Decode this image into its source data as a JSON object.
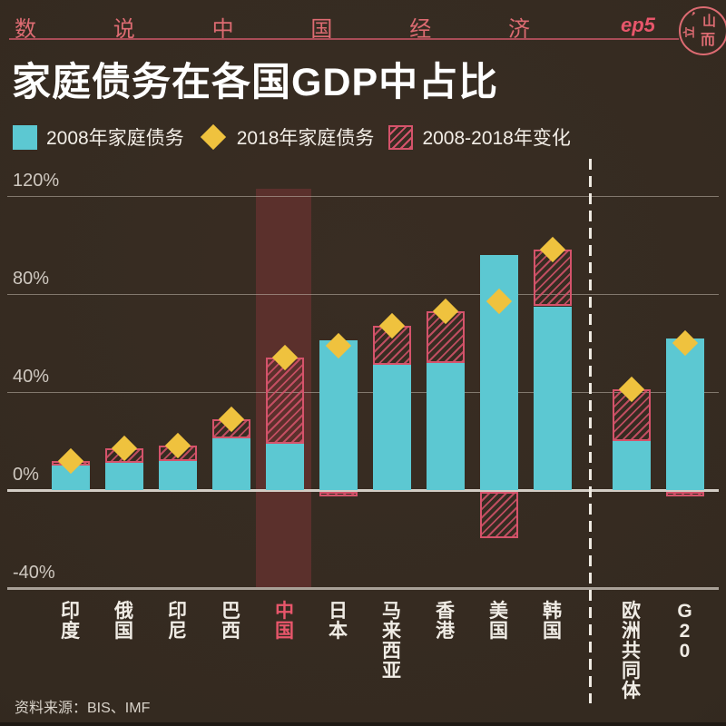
{
  "header": {
    "series_chars": [
      "数",
      "说",
      "中",
      "国",
      "经",
      "济"
    ],
    "episode": "ep5",
    "logo_top": "山",
    "logo_bottom": "而",
    "logo_left": "立",
    "logo_leaf": "❜"
  },
  "title": "家庭债务在各国GDP中占比",
  "legend": [
    {
      "swatch": "cyan-square",
      "label": "2008年家庭债务"
    },
    {
      "swatch": "yellow-diamond",
      "label": "2018年家庭债务"
    },
    {
      "swatch": "red-hatch",
      "label": "2008-2018年变化"
    }
  ],
  "source": "资料来源：BIS、IMF",
  "colors": {
    "background": "#342A20",
    "bar_2008": "#5CC8D2",
    "diamond_2018": "#EFC23E",
    "hatch_change": "#D5536B",
    "china_band": "#5B302C",
    "china_label": "#E8566B",
    "header_pink": "#DD6B72",
    "header_pink_bright": "#E8566B",
    "header_rule": "#A94C57",
    "title_text": "#FFFFFF",
    "axis_text": "#CFC8C0",
    "label_text": "#F0ECE5",
    "source_text": "#D8D2C9"
  },
  "chart_data": {
    "type": "bar",
    "title": "家庭债务在各国GDP中占比",
    "unit": "% of GDP",
    "categories": [
      "印度",
      "俄国",
      "印尼",
      "巴西",
      "中国",
      "日本",
      "马来西亚",
      "香港",
      "美国",
      "韩国",
      "欧洲共同体",
      "G20"
    ],
    "series": [
      {
        "name": "2008年家庭债务",
        "values": [
          10,
          11,
          12,
          21,
          19,
          61,
          51,
          52,
          96,
          75,
          20,
          62
        ]
      },
      {
        "name": "2018年家庭债务",
        "values": [
          12,
          17,
          18,
          29,
          54,
          59,
          67,
          73,
          77,
          98,
          41,
          60
        ]
      },
      {
        "name": "2008-2018年变化",
        "values": [
          2,
          6,
          6,
          8,
          35,
          -2,
          16,
          21,
          -19,
          23,
          21,
          -2
        ]
      }
    ],
    "highlighted_category": "中国",
    "separator_after_category": "韩国",
    "y_ticks": [
      "120%",
      "80%",
      "40%",
      "0%",
      "-40%"
    ],
    "y_tick_values": [
      120,
      80,
      40,
      0,
      -40
    ],
    "ylim": [
      -40,
      120
    ],
    "xlabel": "",
    "ylabel": "",
    "grid": true,
    "legend_position": "top",
    "note": "negative change drawn as hatched box below zero line"
  }
}
